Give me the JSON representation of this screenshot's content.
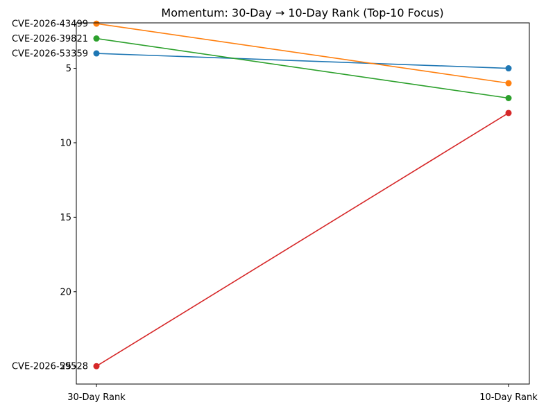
{
  "chart_data": {
    "type": "line",
    "title": "Momentum: 30-Day → 10-Day Rank (Top-10 Focus)",
    "xlabel": "",
    "ylabel": "",
    "categories": [
      "30-Day Rank",
      "10-Day Rank"
    ],
    "y_inverted": true,
    "ylim": [
      26.2,
      1.95
    ],
    "yticks": [
      5,
      10,
      15,
      20,
      25
    ],
    "grid": false,
    "series": [
      {
        "name": "CVE-2026-53359",
        "color": "#1f77b4",
        "values": [
          4,
          5
        ]
      },
      {
        "name": "CVE-2026-43499",
        "color": "#ff7f0e",
        "values": [
          2,
          6
        ]
      },
      {
        "name": "CVE-2026-39821",
        "color": "#2ca02c",
        "values": [
          3,
          7
        ]
      },
      {
        "name": "CVE-2026-59528",
        "color": "#d62728",
        "values": [
          25,
          8
        ]
      }
    ]
  }
}
